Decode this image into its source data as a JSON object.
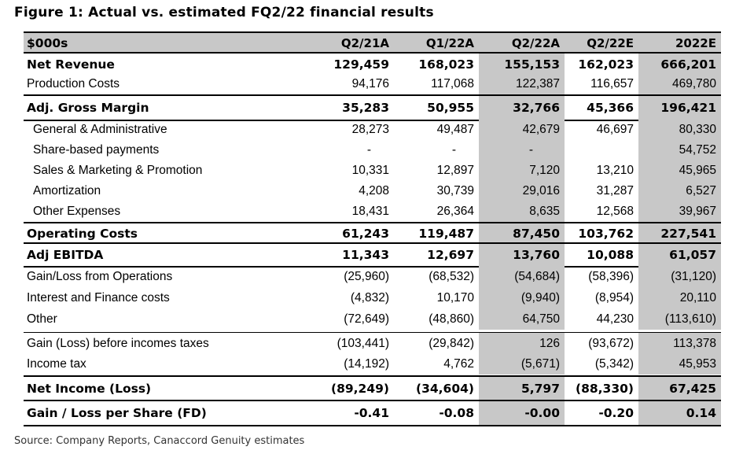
{
  "title": "Figure 1: Actual vs. estimated FQ2/22 financial results",
  "source": "Source: Company Reports, Canaccord Genuity estimates",
  "table": {
    "header": [
      "$000s",
      "Q2/21A",
      "Q1/22A",
      "Q2/22A",
      "Q2/22E",
      "2022E"
    ],
    "rows": [
      {
        "label": "Net Revenue",
        "values": [
          "129,459",
          "168,023",
          "155,153",
          "162,023",
          "666,201"
        ]
      },
      {
        "label": "Production Costs",
        "values": [
          "94,176",
          "117,068",
          "122,387",
          "116,657",
          "469,780"
        ]
      },
      {
        "label": "Adj. Gross Margin",
        "values": [
          "35,283",
          "50,955",
          "32,766",
          "45,366",
          "196,421"
        ]
      },
      {
        "label": "General & Administrative",
        "values": [
          "28,273",
          "49,487",
          "42,679",
          "46,697",
          "80,330"
        ]
      },
      {
        "label": "Share-based payments",
        "values": [
          "-",
          "-",
          "-",
          "",
          "54,752"
        ]
      },
      {
        "label": "Sales & Marketing & Promotion",
        "values": [
          "10,331",
          "12,897",
          "7,120",
          "13,210",
          "45,965"
        ]
      },
      {
        "label": "Amortization",
        "values": [
          "4,208",
          "30,739",
          "29,016",
          "31,287",
          "6,527"
        ]
      },
      {
        "label": "Other Expenses",
        "values": [
          "18,431",
          "26,364",
          "8,635",
          "12,568",
          "39,967"
        ]
      },
      {
        "label": "Operating Costs",
        "values": [
          "61,243",
          "119,487",
          "87,450",
          "103,762",
          "227,541"
        ]
      },
      {
        "label": "Adj EBITDA",
        "values": [
          "11,343",
          "12,697",
          "13,760",
          "10,088",
          "61,057"
        ]
      },
      {
        "label": "Gain/Loss from Operations",
        "values": [
          "(25,960)",
          "(68,532)",
          "(54,684)",
          "(58,396)",
          "(31,120)"
        ]
      },
      {
        "label": "Interest and Finance costs",
        "values": [
          "(4,832)",
          "10,170",
          "(9,940)",
          "(8,954)",
          "20,110"
        ]
      },
      {
        "label": "Other",
        "values": [
          "(72,649)",
          "(48,860)",
          "64,750",
          "44,230",
          "(113,610)"
        ]
      },
      {
        "label": "Gain (Loss) before incomes taxes",
        "values": [
          "(103,441)",
          "(29,842)",
          "126",
          "(93,672)",
          "113,378"
        ]
      },
      {
        "label": "Income tax",
        "values": [
          "(14,192)",
          "4,762",
          "(5,671)",
          "(5,342)",
          "45,953"
        ]
      },
      {
        "label": "Net Income (Loss)",
        "values": [
          "(89,249)",
          "(34,604)",
          "5,797",
          "(88,330)",
          "67,425"
        ]
      },
      {
        "label": "Gain / Loss per Share (FD)",
        "values": [
          "-0.41",
          "-0.08",
          "-0.00",
          "-0.20",
          "0.14"
        ]
      }
    ]
  }
}
